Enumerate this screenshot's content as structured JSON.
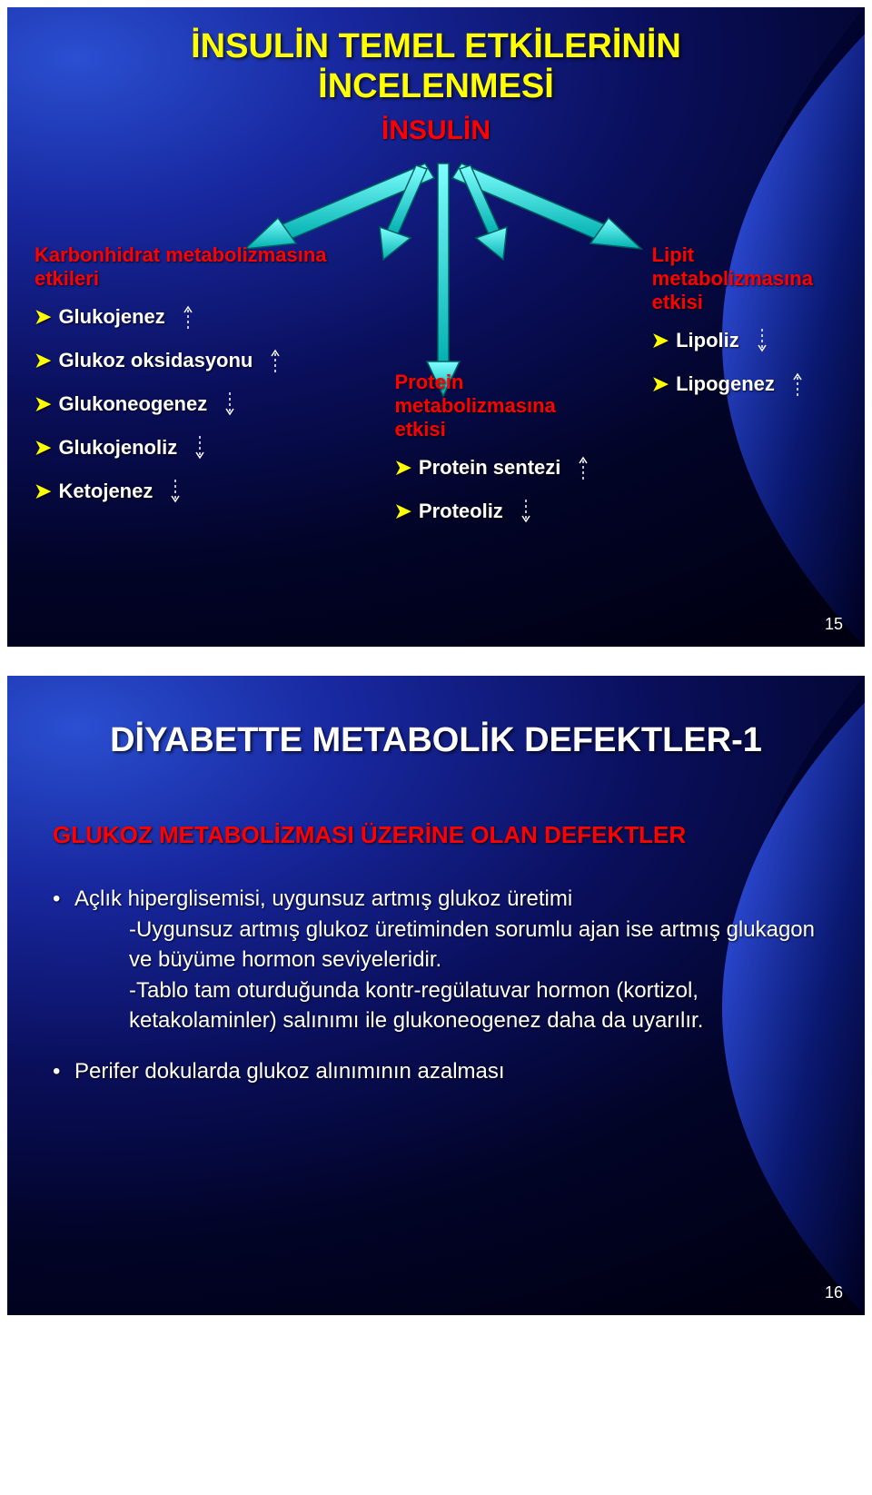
{
  "palette": {
    "bg_outer": "#000012",
    "bg_inner": "#1828a0",
    "title_fill": "#ffff00",
    "title_inner": "#ffffff",
    "red": "#ff0000",
    "white": "#ffffff",
    "cyan": "#00e0e0",
    "cyan_dark": "#008888"
  },
  "slide1": {
    "pagenum": "15",
    "title_l1": "İNSULİN TEMEL ETKİLERİNİN",
    "title_l2": "İNCELENMESİ",
    "subtitle": "İNSULİN",
    "col1": {
      "head": "Karbonhidrat metabolizmasına etkileri",
      "items": [
        {
          "label": "Glukojenez",
          "dir": "up"
        },
        {
          "label": "Glukoz oksidasyonu",
          "dir": "up"
        },
        {
          "label": "Glukoneogenez",
          "dir": "down"
        },
        {
          "label": "Glukojenoliz",
          "dir": "down"
        },
        {
          "label": "Ketojenez",
          "dir": "down"
        }
      ]
    },
    "col2": {
      "head": "Protein metabolizmasına etkisi",
      "items": [
        {
          "label": "Protein sentezi",
          "dir": "up"
        },
        {
          "label": "Proteoliz",
          "dir": "down"
        }
      ]
    },
    "col3": {
      "head": "Lipit metabolizmasına etkisi",
      "items": [
        {
          "label": "Lipoliz",
          "dir": "down"
        },
        {
          "label": "Lipogenez",
          "dir": "up"
        }
      ]
    },
    "arrows": {
      "cyan_fill": "#00e0e0",
      "cyan_stroke": "#006868"
    }
  },
  "slide2": {
    "pagenum": "16",
    "title": "DİYABETTE METABOLİK DEFEKTLER-1",
    "red_head": "GLUKOZ METABOLİZMASI ÜZERİNE OLAN DEFEKTLER",
    "bullets": [
      {
        "lead": "Açlık hiperglisemisi, uygunsuz artmış glukoz üretimi",
        "sub1": "-Uygunsuz artmış glukoz üretiminden sorumlu ajan ise artmış glukagon ve büyüme hormon seviyeleridir.",
        "sub2": "-Tablo tam oturduğunda kontr-regülatuvar hormon (kortizol, ketakolaminler) salınımı ile glukoneogenez daha da uyarılır."
      },
      {
        "lead": "Perifer dokularda glukoz alınımının azalması"
      }
    ]
  }
}
